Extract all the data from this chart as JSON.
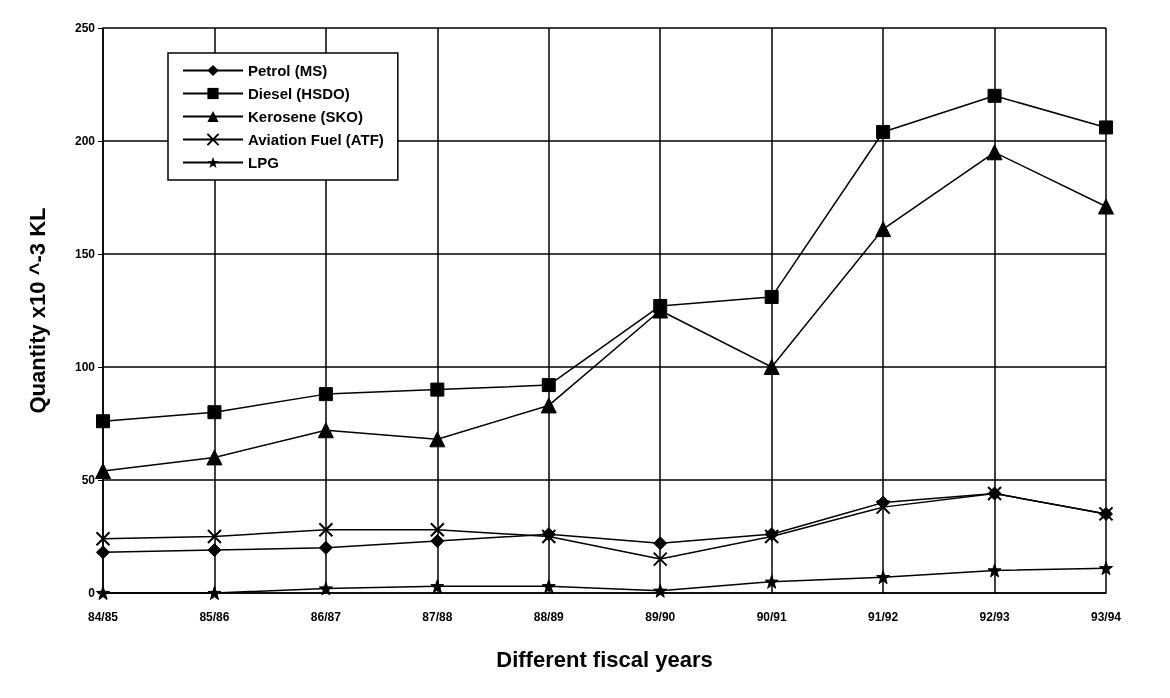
{
  "chart_data": {
    "type": "line",
    "xlabel": "Different fiscal years",
    "ylabel": "Quantity x10 ^-3 KL",
    "categories": [
      "84/85",
      "85/86",
      "86/87",
      "87/88",
      "88/89",
      "89/90",
      "90/91",
      "91/92",
      "92/93",
      "93/94"
    ],
    "series": [
      {
        "name": "Petrol (MS)",
        "color": "#000000",
        "marker": "diamond",
        "values": [
          18,
          19,
          20,
          23,
          26,
          22,
          26,
          40,
          44,
          35
        ]
      },
      {
        "name": "Diesel (HSDO)",
        "color": "#000000",
        "marker": "square",
        "values": [
          76,
          80,
          88,
          90,
          92,
          127,
          131,
          204,
          220,
          206
        ]
      },
      {
        "name": "Kerosene (SKO)",
        "color": "#000000",
        "marker": "triangle",
        "values": [
          54,
          60,
          72,
          68,
          83,
          125,
          100,
          161,
          195,
          171
        ]
      },
      {
        "name": "Aviation Fuel (ATF)",
        "color": "#000000",
        "marker": "cross",
        "values": [
          24,
          25,
          28,
          28,
          25,
          15,
          25,
          38,
          44,
          35
        ]
      },
      {
        "name": "LPG",
        "color": "#000000",
        "marker": "star",
        "values": [
          0,
          0,
          2,
          3,
          3,
          1,
          5,
          7,
          10,
          11
        ]
      }
    ],
    "ylim": [
      0,
      250
    ],
    "yticks": [
      0,
      50,
      100,
      150,
      200,
      250
    ],
    "grid": true,
    "legend": "top left",
    "line_style": "solid"
  }
}
